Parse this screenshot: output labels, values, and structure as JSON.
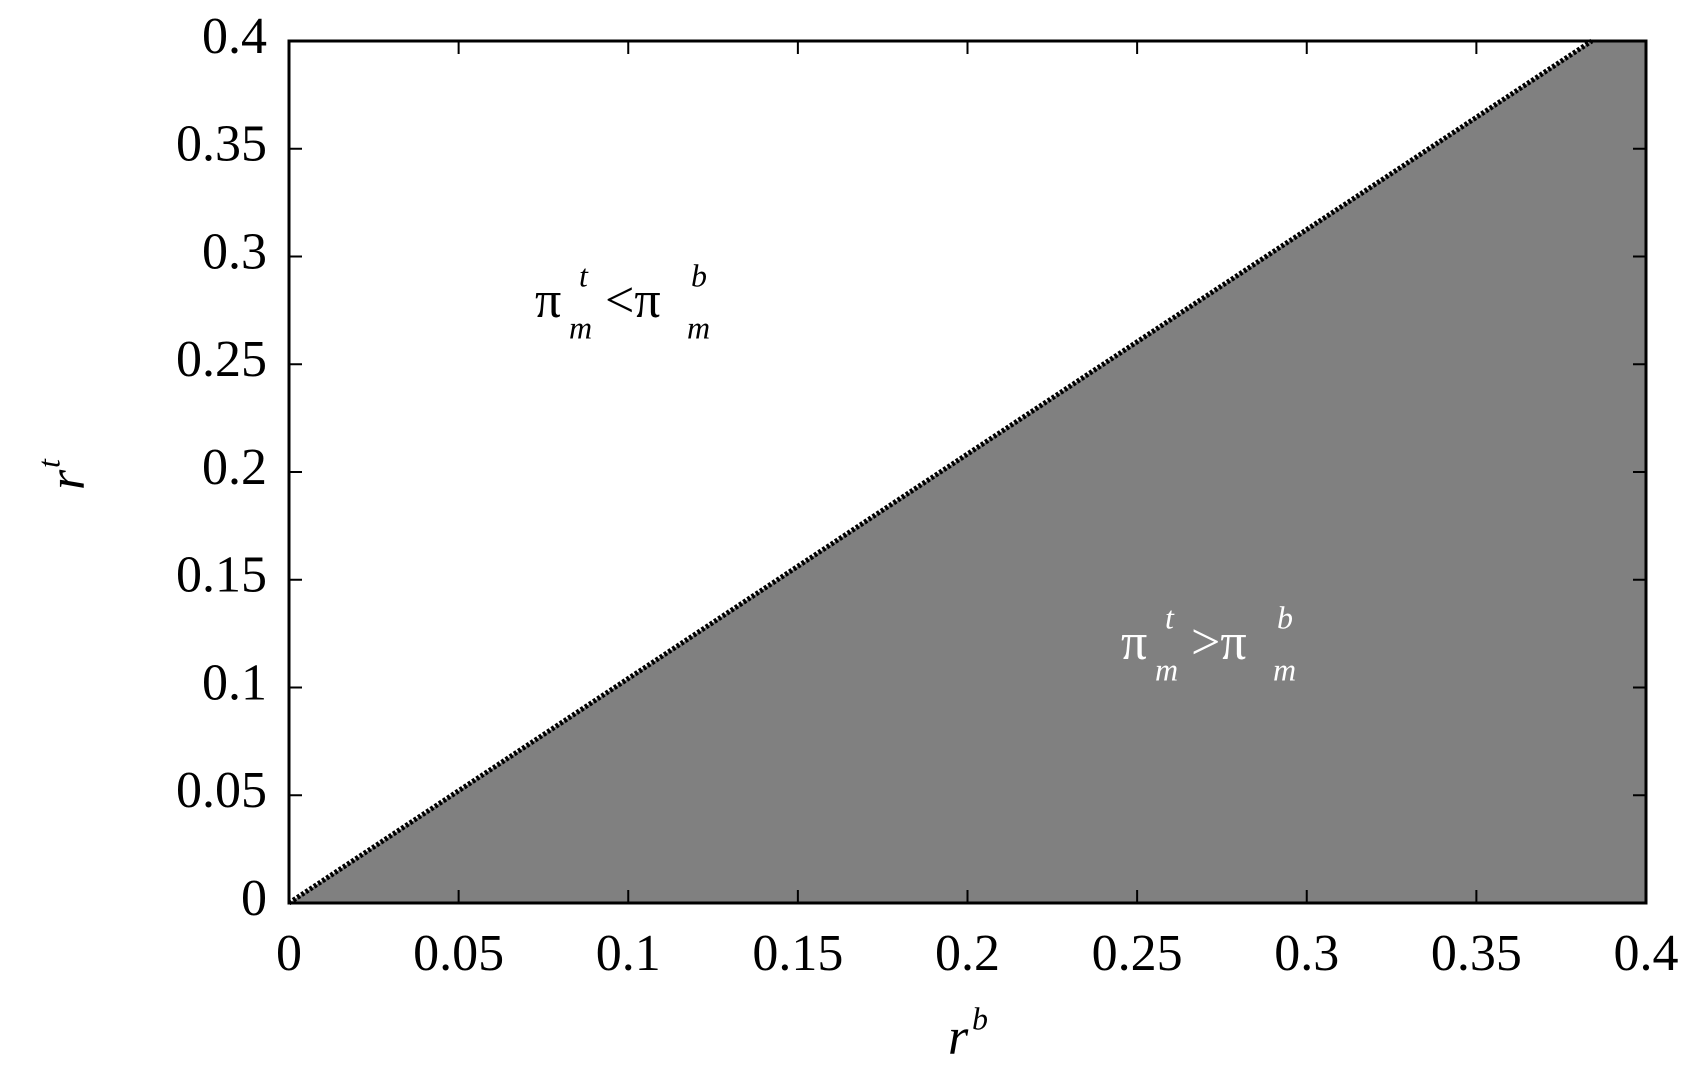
{
  "chart_data": {
    "type": "area",
    "xlabel": [
      "r",
      "b"
    ],
    "ylabel": [
      "r",
      "t"
    ],
    "series": [
      {
        "x": [
          0,
          0.384
        ],
        "values": [
          0,
          0.4
        ],
        "color": "#000000",
        "fill_color": "#808080"
      }
    ],
    "xlim": [
      0,
      0.4
    ],
    "ylim": [
      0,
      0.4
    ],
    "xticks": [
      0,
      0.05,
      0.1,
      0.15,
      0.2,
      0.25,
      0.3,
      0.35,
      0.4
    ],
    "yticks": [
      0,
      0.05,
      0.1,
      0.15,
      0.2,
      0.25,
      0.3,
      0.35,
      0.4
    ],
    "grid": false,
    "annotations": [
      {
        "parts": [
          "π",
          "t",
          "m",
          "<π",
          "b",
          "m"
        ],
        "color": "#000000"
      },
      {
        "parts": [
          "π",
          "t",
          "m",
          ">π",
          "b",
          "m"
        ],
        "color": "#ffffff"
      }
    ]
  }
}
